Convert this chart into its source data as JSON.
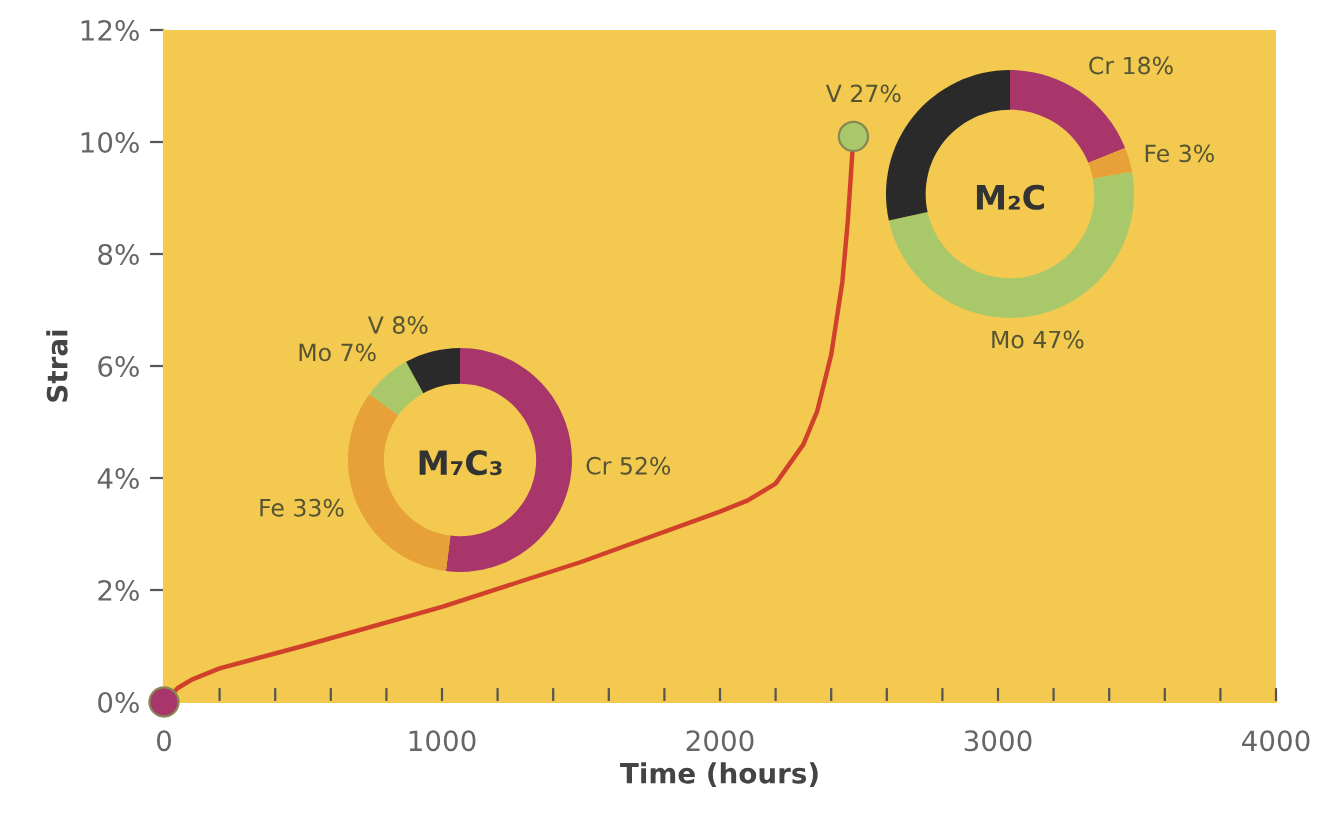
{
  "chart_data": [
    {
      "type": "line",
      "xlabel": "Time (hours)",
      "ylabel": "Strai",
      "xlim": [
        0,
        4000
      ],
      "ylim": [
        0,
        12
      ],
      "xticks": [
        0,
        {
          "value": 200,
          "label": null
        },
        {
          "value": 400,
          "label": null
        },
        {
          "value": 600,
          "label": null
        },
        {
          "value": 800,
          "label": null
        },
        1000,
        {
          "value": 1200,
          "label": null
        },
        {
          "value": 1400,
          "label": null
        },
        {
          "value": 1600,
          "label": null
        },
        {
          "value": 1800,
          "label": null
        },
        2000,
        {
          "value": 2200,
          "label": null
        },
        {
          "value": 2400,
          "label": null
        },
        {
          "value": 2600,
          "label": null
        },
        {
          "value": 2800,
          "label": null
        },
        3000,
        {
          "value": 3200,
          "label": null
        },
        {
          "value": 3400,
          "label": null
        },
        {
          "value": 3600,
          "label": null
        },
        {
          "value": 3800,
          "label": null
        },
        4000
      ],
      "yticks": [
        {
          "value": 0,
          "label": "0%"
        },
        {
          "value": 2,
          "label": "2%"
        },
        {
          "value": 4,
          "label": "4%"
        },
        {
          "value": 6,
          "label": "6%"
        },
        {
          "value": 8,
          "label": "8%"
        },
        {
          "value": 10,
          "label": "10%"
        },
        {
          "value": 12,
          "label": "12%"
        }
      ],
      "grid": false,
      "series": [
        {
          "type": "line",
          "color": "#d0402a",
          "x": [
            0,
            50,
            100,
            200,
            500,
            1000,
            1500,
            2000,
            2100,
            2200,
            2300,
            2350,
            2400,
            2440,
            2460,
            2480
          ],
          "values": [
            0,
            0.25,
            0.4,
            0.6,
            1.0,
            1.7,
            2.5,
            3.4,
            3.6,
            3.9,
            4.6,
            5.2,
            6.2,
            7.5,
            8.6,
            10.1
          ]
        },
        {
          "type": "scatter",
          "colors": [
            "#a8366a",
            "#a9c86a"
          ],
          "x": [
            0,
            2480
          ],
          "values": [
            0,
            10.1
          ]
        }
      ]
    },
    {
      "type": "donut",
      "title": "M₇C₃",
      "categories": [
        "Cr 52%",
        "Fe 33%",
        "Mo 7%",
        "V 8%"
      ],
      "values": [
        52,
        33,
        7,
        8
      ],
      "colors": [
        "#a8366a",
        "#e8a038",
        "#a9c86a",
        "#2a2a2a"
      ]
    },
    {
      "type": "donut",
      "title": "M₂C",
      "categories": [
        "Cr 18%",
        "Fe 3%",
        "Mo 47%",
        "V 27%"
      ],
      "values": [
        18,
        3,
        47,
        27
      ],
      "colors": [
        "#a8366a",
        "#e8a038",
        "#a9c86a",
        "#2a2a2a"
      ]
    }
  ]
}
